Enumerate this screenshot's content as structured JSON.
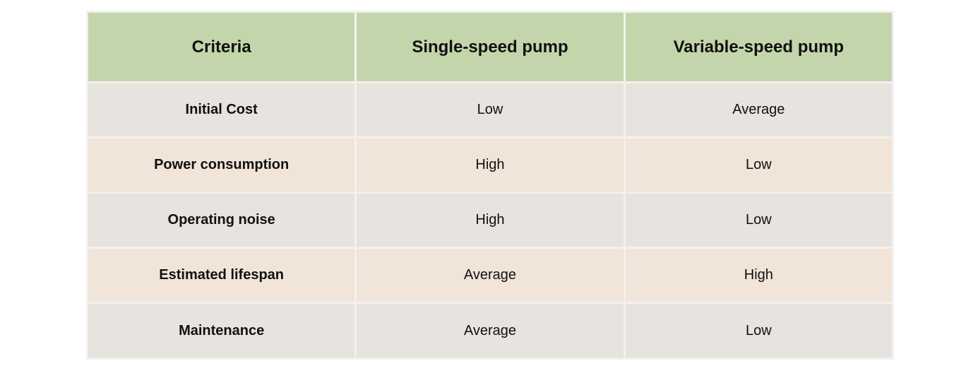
{
  "table": {
    "headers": [
      "Criteria",
      "Single-speed pump",
      "Variable-speed pump"
    ],
    "rows": [
      {
        "criteria": "Initial Cost",
        "single": "Low",
        "variable": "Average"
      },
      {
        "criteria": "Power consumption",
        "single": "High",
        "variable": "Low"
      },
      {
        "criteria": "Operating noise",
        "single": "High",
        "variable": "Low"
      },
      {
        "criteria": "Estimated lifespan",
        "single": "Average",
        "variable": "High"
      },
      {
        "criteria": "Maintenance",
        "single": "Average",
        "variable": "Low"
      }
    ]
  },
  "colors": {
    "header_bg": "#c3d6ab",
    "row_gray_bg": "#e7e3df",
    "row_peach_bg": "#f1e4d9",
    "grid_line": "#f2f1ef"
  }
}
